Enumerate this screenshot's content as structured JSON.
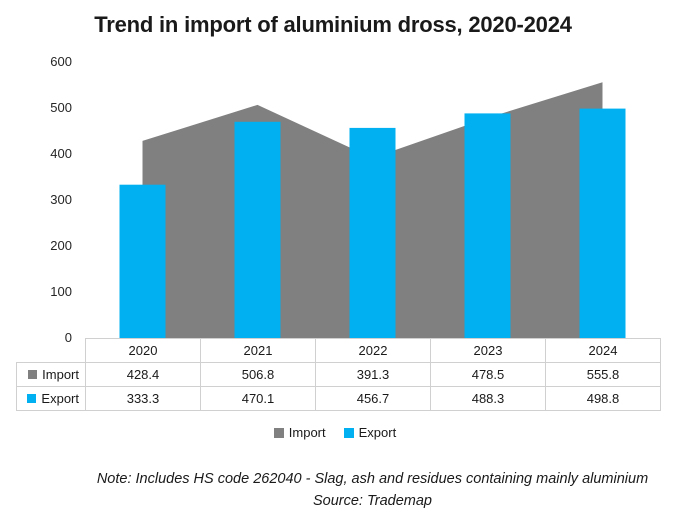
{
  "title": "Trend in import of aluminium dross, 2020-2024",
  "colors": {
    "import": "#808080",
    "export": "#00b0f0",
    "table_border": "#d0d0d0",
    "background": "#ffffff",
    "text": "#1a1a1a"
  },
  "chart_data": {
    "type": "combo",
    "categories": [
      "2020",
      "2021",
      "2022",
      "2023",
      "2024"
    ],
    "series": [
      {
        "name": "Import",
        "type": "area",
        "color": "#808080",
        "values": [
          428.4,
          506.8,
          391.3,
          478.5,
          555.8
        ]
      },
      {
        "name": "Export",
        "type": "bar",
        "color": "#00b0f0",
        "values": [
          333.3,
          470.1,
          456.7,
          488.3,
          498.8
        ]
      }
    ],
    "title": "Trend in import of aluminium dross, 2020-2024",
    "xlabel": "",
    "ylabel": "",
    "ylim": [
      0,
      600
    ],
    "yticks": [
      0,
      100,
      200,
      300,
      400,
      500,
      600
    ],
    "grid": false,
    "legend_position": "bottom"
  },
  "legend": {
    "items": [
      {
        "label": "Import",
        "color": "#808080"
      },
      {
        "label": "Export",
        "color": "#00b0f0"
      }
    ]
  },
  "note": {
    "line1": "Note: Includes HS code 262040 - Slag, ash and residues containing mainly aluminium",
    "line2": "Source: Trademap"
  }
}
